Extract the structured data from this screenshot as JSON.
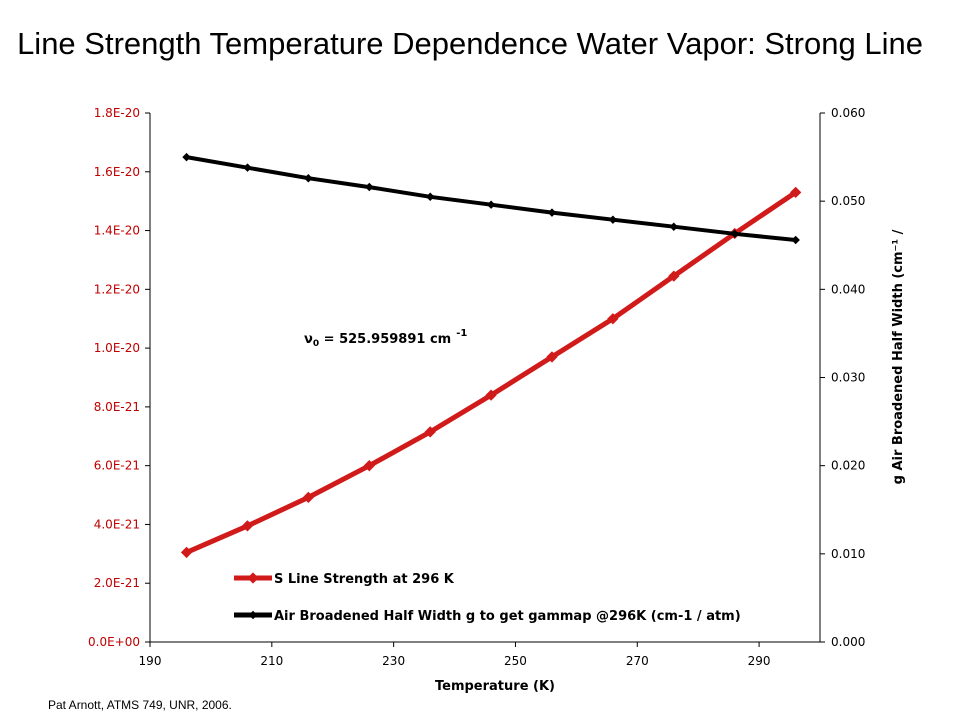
{
  "title": "Line Strength Temperature Dependence Water Vapor: Strong Line",
  "footer": "Pat Arnott, ATMS 749, UNR, 2006.",
  "chart_data": {
    "type": "line",
    "xlabel": "Temperature (K)",
    "y2label": "g Air Broadened Half Width (cm⁻¹ /",
    "x_ticks": [
      "190",
      "210",
      "230",
      "250",
      "270",
      "290"
    ],
    "xlim": [
      190,
      300
    ],
    "y_ticks": [
      "0.0E+00",
      "2.0E-21",
      "4.0E-21",
      "6.0E-21",
      "8.0E-21",
      "1.0E-20",
      "1.2E-20",
      "1.4E-20",
      "1.6E-20",
      "1.8E-20"
    ],
    "ylim": [
      0,
      1.8e-20
    ],
    "y2_ticks": [
      "0.000",
      "0.010",
      "0.020",
      "0.030",
      "0.040",
      "0.050",
      "0.060"
    ],
    "y2lim": [
      0,
      0.06
    ],
    "annotation": "ν₀ = 525.959891 cm⁻¹",
    "annotation_parts": {
      "nu": "ν",
      "sub": "0",
      "text": " = 525.959891 cm",
      "sup": "-1"
    },
    "legend_position": "bottom-left",
    "series": [
      {
        "name": "S Line Strength at 296 K",
        "axis": "left",
        "color": "#d11a1a",
        "x": [
          196,
          206,
          216,
          226,
          236,
          246,
          256,
          266,
          276,
          286,
          296
        ],
        "y": [
          3.05e-21,
          3.95e-21,
          4.92e-21,
          6e-21,
          7.15e-21,
          8.4e-21,
          9.7e-21,
          1.1e-20,
          1.245e-20,
          1.39e-20,
          1.53e-20
        ]
      },
      {
        "name": "Air Broadened Half Width g to get gammap @296K (cm-1 / atm)",
        "axis": "right",
        "color": "#000000",
        "x": [
          196,
          206,
          216,
          226,
          236,
          246,
          256,
          266,
          276,
          286,
          296
        ],
        "y": [
          0.055,
          0.0538,
          0.0526,
          0.0516,
          0.0505,
          0.0496,
          0.0487,
          0.0479,
          0.0471,
          0.0463,
          0.0456
        ]
      }
    ]
  }
}
